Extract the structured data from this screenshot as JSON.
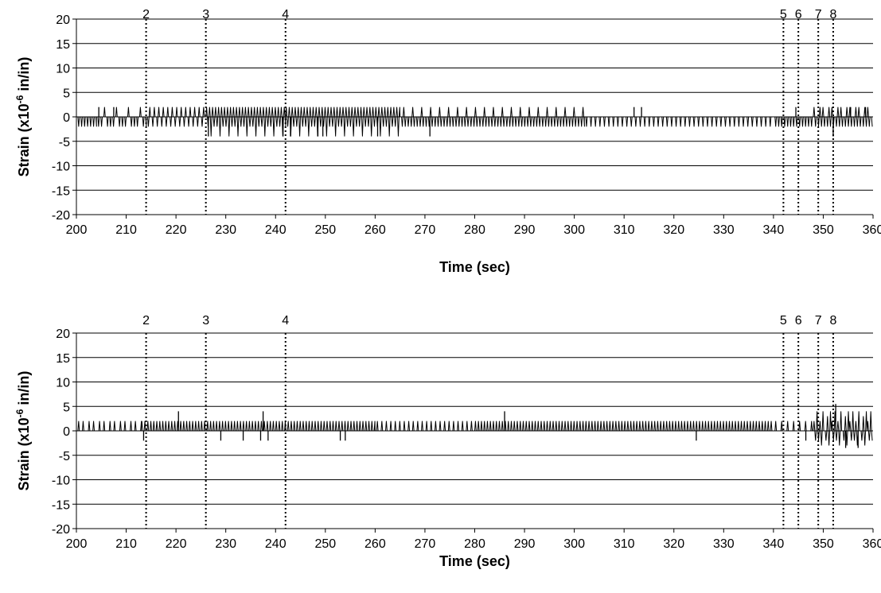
{
  "chart_data": [
    {
      "type": "line",
      "title": "",
      "xlabel": "Time (sec)",
      "ylabel_prefix": "Strain (x10",
      "ylabel_exp": "-6",
      "ylabel_suffix": " in/in)",
      "xlim": [
        200,
        360
      ],
      "ylim": [
        -20,
        20
      ],
      "xticks": [
        200,
        210,
        220,
        230,
        240,
        250,
        260,
        270,
        280,
        290,
        300,
        310,
        320,
        330,
        340,
        350,
        360
      ],
      "yticks": [
        20,
        15,
        10,
        5,
        0,
        -5,
        -10,
        -15,
        -20
      ],
      "grid": "horizontal",
      "events": [
        {
          "label": "2",
          "x": 214
        },
        {
          "label": "3",
          "x": 226
        },
        {
          "label": "4",
          "x": 242
        },
        {
          "label": "5",
          "x": 342
        },
        {
          "label": "6",
          "x": 345
        },
        {
          "label": "7",
          "x": 349
        },
        {
          "label": "8",
          "x": 352
        }
      ],
      "series": [
        {
          "color": "#000000",
          "baseline": 0,
          "segments": [
            {
              "x": [
                200,
                204
              ],
              "pattern": [
                0,
                -2
              ]
            },
            {
              "x": [
                204,
                214
              ],
              "pattern": [
                0,
                -2,
                0,
                -2,
                0,
                2,
                0,
                -2
              ]
            },
            {
              "x": [
                214,
                226
              ],
              "pattern": [
                0,
                -2,
                2,
                0,
                -2,
                2
              ]
            },
            {
              "x": [
                226,
                242
              ],
              "pattern": [
                2,
                -2,
                2,
                -4,
                2,
                -2
              ]
            },
            {
              "x": [
                242,
                265
              ],
              "pattern": [
                2,
                -2,
                2,
                -4,
                2,
                -2
              ]
            },
            {
              "x": [
                265,
                302
              ],
              "pattern": [
                0,
                -2,
                2,
                -2,
                0,
                -2
              ]
            },
            {
              "x": [
                302,
                340
              ],
              "pattern": [
                0,
                -2,
                0,
                0,
                -2,
                0
              ]
            },
            {
              "x": [
                340,
                348
              ],
              "pattern": [
                0,
                -2,
                0,
                -2
              ]
            },
            {
              "x": [
                348,
                360
              ],
              "pattern": [
                2,
                -2,
                0,
                -2,
                2,
                -2
              ]
            }
          ],
          "spikes": [
            {
              "x": 204.5,
              "y": 2
            },
            {
              "x": 207.5,
              "y": 2
            },
            {
              "x": 226.5,
              "y": -4
            },
            {
              "x": 241.5,
              "y": -4
            },
            {
              "x": 243,
              "y": -4
            },
            {
              "x": 248.5,
              "y": -4
            },
            {
              "x": 249.5,
              "y": -4
            },
            {
              "x": 260.5,
              "y": -4
            },
            {
              "x": 271,
              "y": -4
            },
            {
              "x": 312,
              "y": 2
            },
            {
              "x": 313.5,
              "y": 2
            },
            {
              "x": 344.5,
              "y": 2
            },
            {
              "x": 352,
              "y": -4
            },
            {
              "x": 355.5,
              "y": 2
            },
            {
              "x": 358.5,
              "y": 2
            }
          ]
        }
      ]
    },
    {
      "type": "line",
      "title": "",
      "xlabel": "Time (sec)",
      "ylabel_prefix": "Strain (x10",
      "ylabel_exp": "-6",
      "ylabel_suffix": " in/in)",
      "xlim": [
        200,
        360
      ],
      "ylim": [
        -20,
        20
      ],
      "xticks": [
        200,
        210,
        220,
        230,
        240,
        250,
        260,
        270,
        280,
        290,
        300,
        310,
        320,
        330,
        340,
        350,
        360
      ],
      "yticks": [
        20,
        15,
        10,
        5,
        0,
        -5,
        -10,
        -15,
        -20
      ],
      "grid": "horizontal",
      "events": [
        {
          "label": "2",
          "x": 214
        },
        {
          "label": "3",
          "x": 226
        },
        {
          "label": "4",
          "x": 242
        },
        {
          "label": "5",
          "x": 342
        },
        {
          "label": "6",
          "x": 345
        },
        {
          "label": "7",
          "x": 349
        },
        {
          "label": "8",
          "x": 352
        }
      ],
      "series": [
        {
          "color": "#000000",
          "baseline": 0,
          "segments": [
            {
              "x": [
                200,
                213
              ],
              "pattern": [
                0,
                2,
                0,
                0,
                2,
                0,
                0
              ]
            },
            {
              "x": [
                213,
                260
              ],
              "pattern": [
                2,
                0,
                2,
                0,
                2,
                0
              ]
            },
            {
              "x": [
                260,
                280
              ],
              "pattern": [
                0,
                2,
                0,
                0,
                2,
                0
              ]
            },
            {
              "x": [
                280,
                340
              ],
              "pattern": [
                2,
                0,
                2,
                0,
                2,
                0
              ]
            },
            {
              "x": [
                340,
                348
              ],
              "pattern": [
                0,
                2,
                0,
                0
              ]
            },
            {
              "x": [
                348,
                360
              ],
              "pattern": [
                2,
                -2,
                4,
                -2,
                2,
                -3,
                4,
                0,
                -2,
                3,
                -3,
                4
              ]
            }
          ],
          "spikes": [
            {
              "x": 213.5,
              "y": -2
            },
            {
              "x": 220.5,
              "y": 4
            },
            {
              "x": 229,
              "y": -2
            },
            {
              "x": 233.5,
              "y": -2
            },
            {
              "x": 237,
              "y": -2
            },
            {
              "x": 237.5,
              "y": 4
            },
            {
              "x": 238.5,
              "y": -2
            },
            {
              "x": 253,
              "y": -2
            },
            {
              "x": 254,
              "y": -2
            },
            {
              "x": 286,
              "y": 4
            },
            {
              "x": 324.5,
              "y": -2
            },
            {
              "x": 346.5,
              "y": -2
            },
            {
              "x": 352.5,
              "y": 5.5
            },
            {
              "x": 354.5,
              "y": -3.5
            },
            {
              "x": 357,
              "y": -3.5
            }
          ]
        }
      ]
    }
  ]
}
